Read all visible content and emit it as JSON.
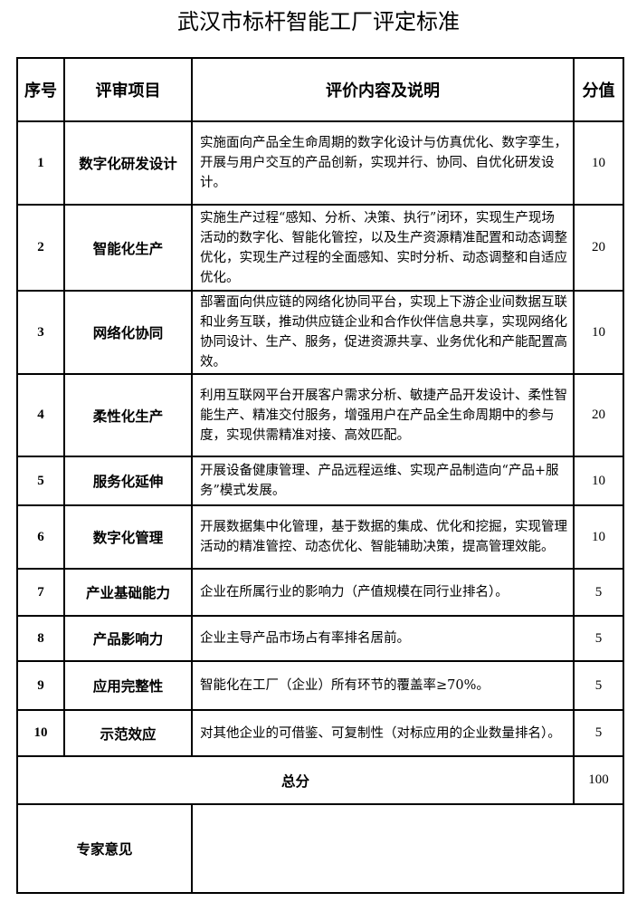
{
  "title": "武汉市标杆智能工厂评定标准",
  "headers": {
    "no": "序号",
    "item": "评审项目",
    "content": "评价内容及说明",
    "score": "分值"
  },
  "rows": [
    {
      "no": "1",
      "item": "数字化研发设计",
      "content": "实施面向产品全生命周期的数字化设计与仿真优化、数字孪生，开展与用户交互的产品创新，实现并行、协同、自优化研发设计。",
      "score": "10"
    },
    {
      "no": "2",
      "item": "智能化生产",
      "content": "实施生产过程“感知、分析、决策、执行”闭环，实现生产现场活动的数字化、智能化管控，以及生产资源精准配置和动态调整优化，实现生产过程的全面感知、实时分析、动态调整和自适应优化。",
      "score": "20"
    },
    {
      "no": "3",
      "item": "网络化协同",
      "content": "部署面向供应链的网络化协同平台，实现上下游企业间数据互联和业务互联，推动供应链企业和合作伙伴信息共享，实现网络化协同设计、生产、服务，促进资源共享、业务优化和产能配置高效。",
      "score": "10"
    },
    {
      "no": "4",
      "item": "柔性化生产",
      "content": "利用互联网平台开展客户需求分析、敏捷产品开发设计、柔性智能生产、精准交付服务，增强用户在产品全生命周期中的参与度，实现供需精准对接、高效匹配。",
      "score": "20"
    },
    {
      "no": "5",
      "item": "服务化延伸",
      "content": "开展设备健康管理、产品远程运维、实现产品制造向“产品+服务”模式发展。",
      "score": "10"
    },
    {
      "no": "6",
      "item": "数字化管理",
      "content": "开展数据集中化管理，基于数据的集成、优化和挖掘，实现管理活动的精准管控、动态优化、智能辅助决策，提高管理效能。",
      "score": "10"
    },
    {
      "no": "7",
      "item": "产业基础能力",
      "content": "企业在所属行业的影响力（产值规模在同行业排名）。",
      "score": "5"
    },
    {
      "no": "8",
      "item": "产品影响力",
      "content": "企业主导产品市场占有率排名居前。",
      "score": "5"
    },
    {
      "no": "9",
      "item": "应用完整性",
      "content": "智能化在工厂（企业）所有环节的覆盖率≥70%。",
      "score": "5"
    },
    {
      "no": "10",
      "item": "示范效应",
      "content": "对其他企业的可借鉴、可复制性（对标应用的企业数量排名）。",
      "score": "5"
    }
  ],
  "total": {
    "label": "总分",
    "value": "100"
  },
  "expert": {
    "label": "专家意见",
    "value": ""
  }
}
